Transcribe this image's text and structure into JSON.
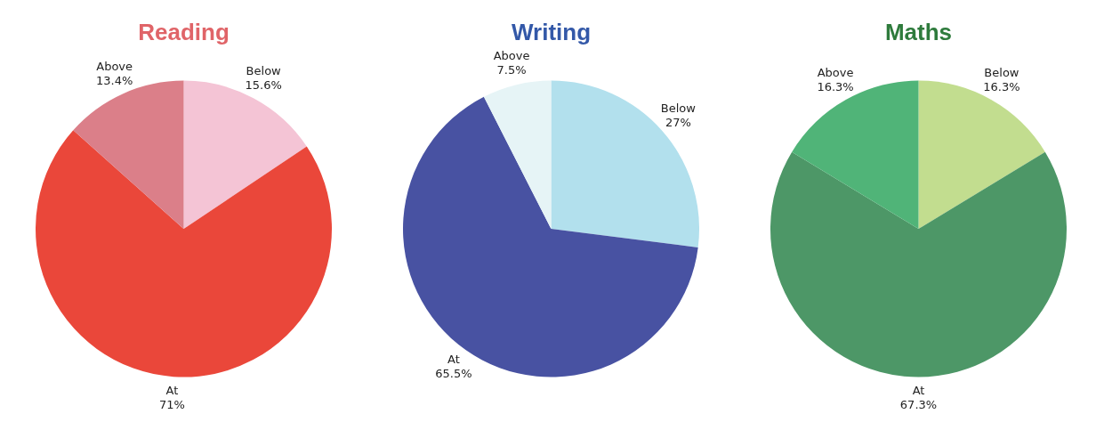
{
  "chart_data": [
    {
      "type": "pie",
      "title": "Reading",
      "categories": [
        "Below",
        "At",
        "Above"
      ],
      "values": [
        15.6,
        71,
        13.4
      ],
      "colors": [
        "#f4c4d5",
        "#ea473a",
        "#db7f89"
      ],
      "value_labels": [
        "15.6%",
        "71%",
        "13.4%"
      ],
      "legend": false
    },
    {
      "type": "pie",
      "title": "Writing",
      "categories": [
        "Below",
        "At",
        "Above"
      ],
      "values": [
        27,
        65.5,
        7.5
      ],
      "colors": [
        "#b2e0ed",
        "#4852a2",
        "#e6f4f6"
      ],
      "value_labels": [
        "27%",
        "65.5%",
        "7.5%"
      ],
      "legend": false
    },
    {
      "type": "pie",
      "title": "Maths",
      "categories": [
        "Below",
        "At",
        "Above"
      ],
      "values": [
        16.3,
        67.3,
        16.3
      ],
      "colors": [
        "#c2dd8f",
        "#4d9767",
        "#50b478"
      ],
      "value_labels": [
        "16.3%",
        "67.3%",
        "16.3%"
      ],
      "legend": false
    }
  ]
}
